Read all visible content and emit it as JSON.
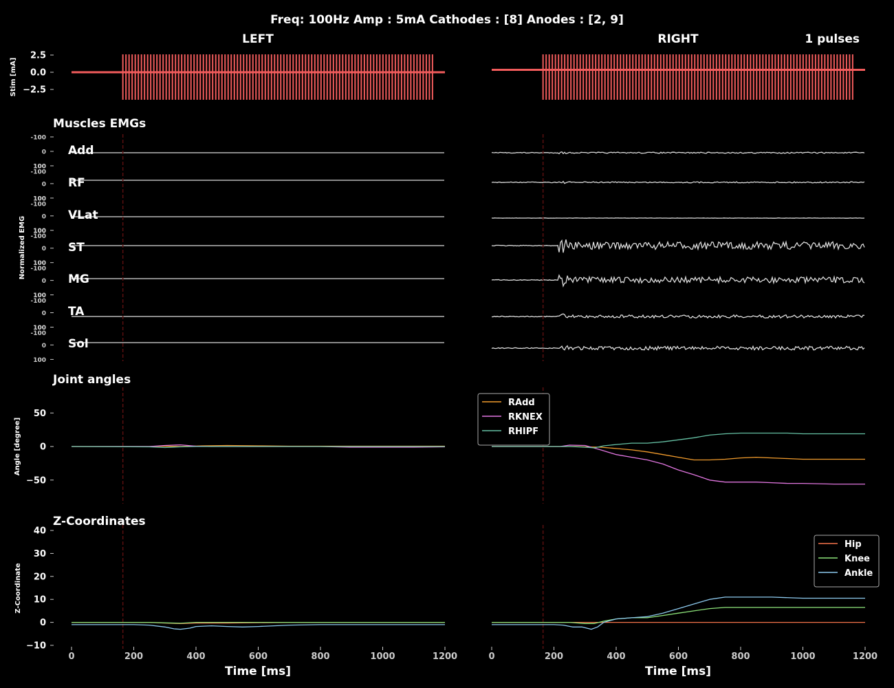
{
  "suptitle": "Freq: 100Hz  Amp : 5mA  Cathodes : [8]  Anodes : [2, 9]",
  "pulses_label": "1 pulses",
  "colors": {
    "background": "#000000",
    "text": "#ffffff",
    "tick_text": "#cccccc",
    "stim": "#f25c5c",
    "emg": "#dddddd",
    "stim_onset_line": "#5a1010",
    "radd": "#f39c2c",
    "rknex": "#e377e2",
    "rhipf": "#66c2a5",
    "hip": "#f4734a",
    "knee": "#8ee57a",
    "ankle": "#8ecbf0"
  },
  "chart_data": [
    {
      "name": "stim-left",
      "type": "line",
      "title": "LEFT",
      "ylabel": "Stim [mA]",
      "xlim": [
        0,
        1200
      ],
      "ylim": [
        -3.5,
        3.5
      ],
      "yticks": [
        2.5,
        0.0,
        -2.5
      ],
      "ytick_labels": [
        "2.5",
        "0.0",
        "−2.5"
      ],
      "baseline": 0,
      "pulse_start_ms": 165,
      "pulse_end_ms": 1160,
      "pulse_count": 101,
      "pulse_amplitude": 2.6,
      "pulse_low": -4.0
    },
    {
      "name": "stim-right",
      "type": "line",
      "title": "RIGHT",
      "xlim": [
        0,
        1200
      ],
      "ylim": [
        -3.5,
        3.5
      ],
      "baseline": 0.35,
      "pulse_start_ms": 165,
      "pulse_end_ms": 1160,
      "pulse_count": 101,
      "pulse_amplitude": 2.6,
      "pulse_low": -4.0
    },
    {
      "name": "emg-left",
      "type": "line",
      "title": "Muscles EMGs",
      "ylabel": "Normalized EMG",
      "xlim": [
        0,
        1200
      ],
      "stim_onset_ms": 165,
      "tick_labels": [
        "-100",
        "0",
        "100"
      ],
      "muscles": [
        {
          "name": "Add",
          "offset": 5,
          "activity": 0
        },
        {
          "name": "RF",
          "offset": -5,
          "activity": 0
        },
        {
          "name": "VLat",
          "offset": 0,
          "activity": 0
        },
        {
          "name": "ST",
          "offset": 0,
          "activity": 0
        },
        {
          "name": "MG",
          "offset": 0,
          "activity": 0
        },
        {
          "name": "TA",
          "offset": 5,
          "activity": 0
        },
        {
          "name": "Sol",
          "offset": 0,
          "activity": 0
        }
      ]
    },
    {
      "name": "emg-right",
      "type": "line",
      "xlim": [
        0,
        1200
      ],
      "stim_onset_ms": 165,
      "muscles": [
        {
          "name": "Add",
          "offset": -5,
          "activity": 1.5
        },
        {
          "name": "RF",
          "offset": 0,
          "activity": 1.5
        },
        {
          "name": "VLat",
          "offset": 5,
          "activity": 0.3
        },
        {
          "name": "ST",
          "offset": 0,
          "activity": 10
        },
        {
          "name": "MG",
          "offset": 5,
          "activity": 8
        },
        {
          "name": "TA",
          "offset": 0,
          "activity": 4
        },
        {
          "name": "Sol",
          "offset": 0,
          "activity": 5
        }
      ]
    },
    {
      "name": "angles-left",
      "type": "line",
      "title": "Joint angles",
      "ylabel": "Angle [degree]",
      "xlim": [
        0,
        1200
      ],
      "ylim": [
        -80,
        80
      ],
      "yticks": [
        50,
        0,
        -50
      ],
      "ytick_labels": [
        "50",
        "0",
        "−50"
      ],
      "stim_onset_ms": 165,
      "series": [
        {
          "name": "RAdd",
          "color_key": "radd",
          "x": [
            0,
            250,
            300,
            350,
            420,
            500,
            600,
            700,
            800,
            900,
            1000,
            1100,
            1200
          ],
          "y": [
            0,
            0,
            0.5,
            0,
            1,
            1.5,
            1,
            0.5,
            0.5,
            0.5,
            0.5,
            0.5,
            0.5
          ]
        },
        {
          "name": "RKNEX",
          "color_key": "rknex",
          "x": [
            0,
            250,
            300,
            350,
            400,
            450,
            600,
            800,
            900,
            1000,
            1100,
            1200
          ],
          "y": [
            0,
            0,
            1.5,
            2.5,
            0.5,
            0,
            0,
            0,
            -1,
            -1,
            -1,
            -0.5
          ]
        },
        {
          "name": "RHIPF",
          "color_key": "rhipf",
          "x": [
            0,
            250,
            300,
            350,
            400,
            500,
            700,
            900,
            1200
          ],
          "y": [
            0,
            -0.5,
            -1.5,
            -0.5,
            0,
            0,
            0,
            0,
            0
          ]
        }
      ]
    },
    {
      "name": "angles-right",
      "type": "line",
      "xlim": [
        0,
        1200
      ],
      "ylim": [
        -80,
        80
      ],
      "stim_onset_ms": 165,
      "legend": "upper-left",
      "series": [
        {
          "name": "RAdd",
          "color_key": "radd",
          "x": [
            0,
            220,
            270,
            300,
            350,
            400,
            450,
            500,
            550,
            600,
            650,
            700,
            750,
            800,
            850,
            900,
            950,
            1000,
            1100,
            1200
          ],
          "y": [
            0,
            0,
            0,
            -0.5,
            -1,
            -3,
            -5,
            -8,
            -12,
            -16,
            -20,
            -20,
            -19,
            -17,
            -16,
            -17,
            -18,
            -19,
            -19,
            -19
          ]
        },
        {
          "name": "RKNEX",
          "color_key": "rknex",
          "x": [
            0,
            220,
            250,
            300,
            350,
            400,
            450,
            500,
            550,
            600,
            650,
            700,
            750,
            800,
            850,
            900,
            950,
            1000,
            1100,
            1200
          ],
          "y": [
            0,
            0,
            2,
            1.5,
            -5,
            -12,
            -16,
            -20,
            -26,
            -35,
            -42,
            -50,
            -53,
            -53,
            -53,
            -54,
            -55,
            -55,
            -56,
            -56
          ]
        },
        {
          "name": "RHIPF",
          "color_key": "rhipf",
          "x": [
            0,
            250,
            300,
            330,
            360,
            400,
            450,
            500,
            550,
            600,
            650,
            700,
            750,
            800,
            850,
            900,
            950,
            1000,
            1100,
            1200
          ],
          "y": [
            0,
            0,
            -1,
            -2,
            1,
            3,
            5,
            5,
            7,
            10,
            13,
            17,
            19,
            20,
            20,
            20,
            20,
            19,
            19,
            19
          ]
        }
      ]
    },
    {
      "name": "z-left",
      "type": "line",
      "title": "Z-Coordinates",
      "xlabel": "Time [ms]",
      "ylabel": "Z-Coordinate",
      "xlim": [
        0,
        1200
      ],
      "ylim": [
        -10,
        40
      ],
      "yticks": [
        40,
        30,
        20,
        10,
        0,
        -10
      ],
      "ytick_labels": [
        "40",
        "30",
        "20",
        "10",
        "0",
        "−10"
      ],
      "xticks": [
        0,
        200,
        400,
        600,
        800,
        1000,
        1200
      ],
      "xtick_labels": [
        "0",
        "200",
        "400",
        "600",
        "800",
        "1000",
        "1200"
      ],
      "stim_onset_ms": 165,
      "series": [
        {
          "name": "Hip",
          "color_key": "hip",
          "x": [
            0,
            250,
            300,
            350,
            400,
            500,
            700,
            900,
            1200
          ],
          "y": [
            0,
            0,
            -0.3,
            -0.5,
            -0.3,
            -0.3,
            0,
            0,
            0
          ]
        },
        {
          "name": "Knee",
          "color_key": "knee",
          "x": [
            0,
            250,
            300,
            350,
            400,
            500,
            700,
            900,
            1200
          ],
          "y": [
            0,
            0,
            -0.2,
            -0.4,
            0,
            0,
            0,
            0,
            0
          ]
        },
        {
          "name": "Ankle",
          "color_key": "ankle",
          "x": [
            0,
            200,
            250,
            300,
            330,
            350,
            380,
            400,
            450,
            500,
            550,
            600,
            700,
            800,
            900,
            1000,
            1100,
            1200
          ],
          "y": [
            -1,
            -1,
            -1.2,
            -2,
            -2.8,
            -3,
            -2.5,
            -1.8,
            -1.5,
            -1.8,
            -2,
            -1.8,
            -1.2,
            -1,
            -1,
            -1,
            -1,
            -1
          ]
        }
      ]
    },
    {
      "name": "z-right",
      "type": "line",
      "xlabel": "Time [ms]",
      "xlim": [
        0,
        1200
      ],
      "ylim": [
        -10,
        40
      ],
      "xticks": [
        0,
        200,
        400,
        600,
        800,
        1000,
        1200
      ],
      "xtick_labels": [
        "0",
        "200",
        "400",
        "600",
        "800",
        "1000",
        "1200"
      ],
      "stim_onset_ms": 165,
      "legend": "upper-right",
      "series": [
        {
          "name": "Hip",
          "color_key": "hip",
          "x": [
            0,
            1200
          ],
          "y": [
            0,
            0
          ]
        },
        {
          "name": "Knee",
          "color_key": "knee",
          "x": [
            0,
            250,
            300,
            330,
            360,
            400,
            450,
            500,
            550,
            600,
            650,
            700,
            750,
            800,
            900,
            1000,
            1100,
            1200
          ],
          "y": [
            0,
            0,
            -0.5,
            -0.5,
            0.5,
            1.5,
            2,
            2,
            3,
            4,
            5,
            6,
            6.5,
            6.5,
            6.5,
            6.5,
            6.5,
            6.5
          ]
        },
        {
          "name": "Ankle",
          "color_key": "ankle",
          "x": [
            0,
            200,
            230,
            260,
            290,
            320,
            340,
            360,
            400,
            450,
            500,
            550,
            600,
            650,
            700,
            750,
            800,
            850,
            900,
            1000,
            1100,
            1200
          ],
          "y": [
            -1,
            -1,
            -1.2,
            -2,
            -2,
            -3,
            -2,
            0,
            1.5,
            2,
            2.5,
            4,
            6,
            8,
            10,
            11,
            11,
            11,
            11,
            10.5,
            10.5,
            10.5
          ]
        }
      ]
    }
  ]
}
